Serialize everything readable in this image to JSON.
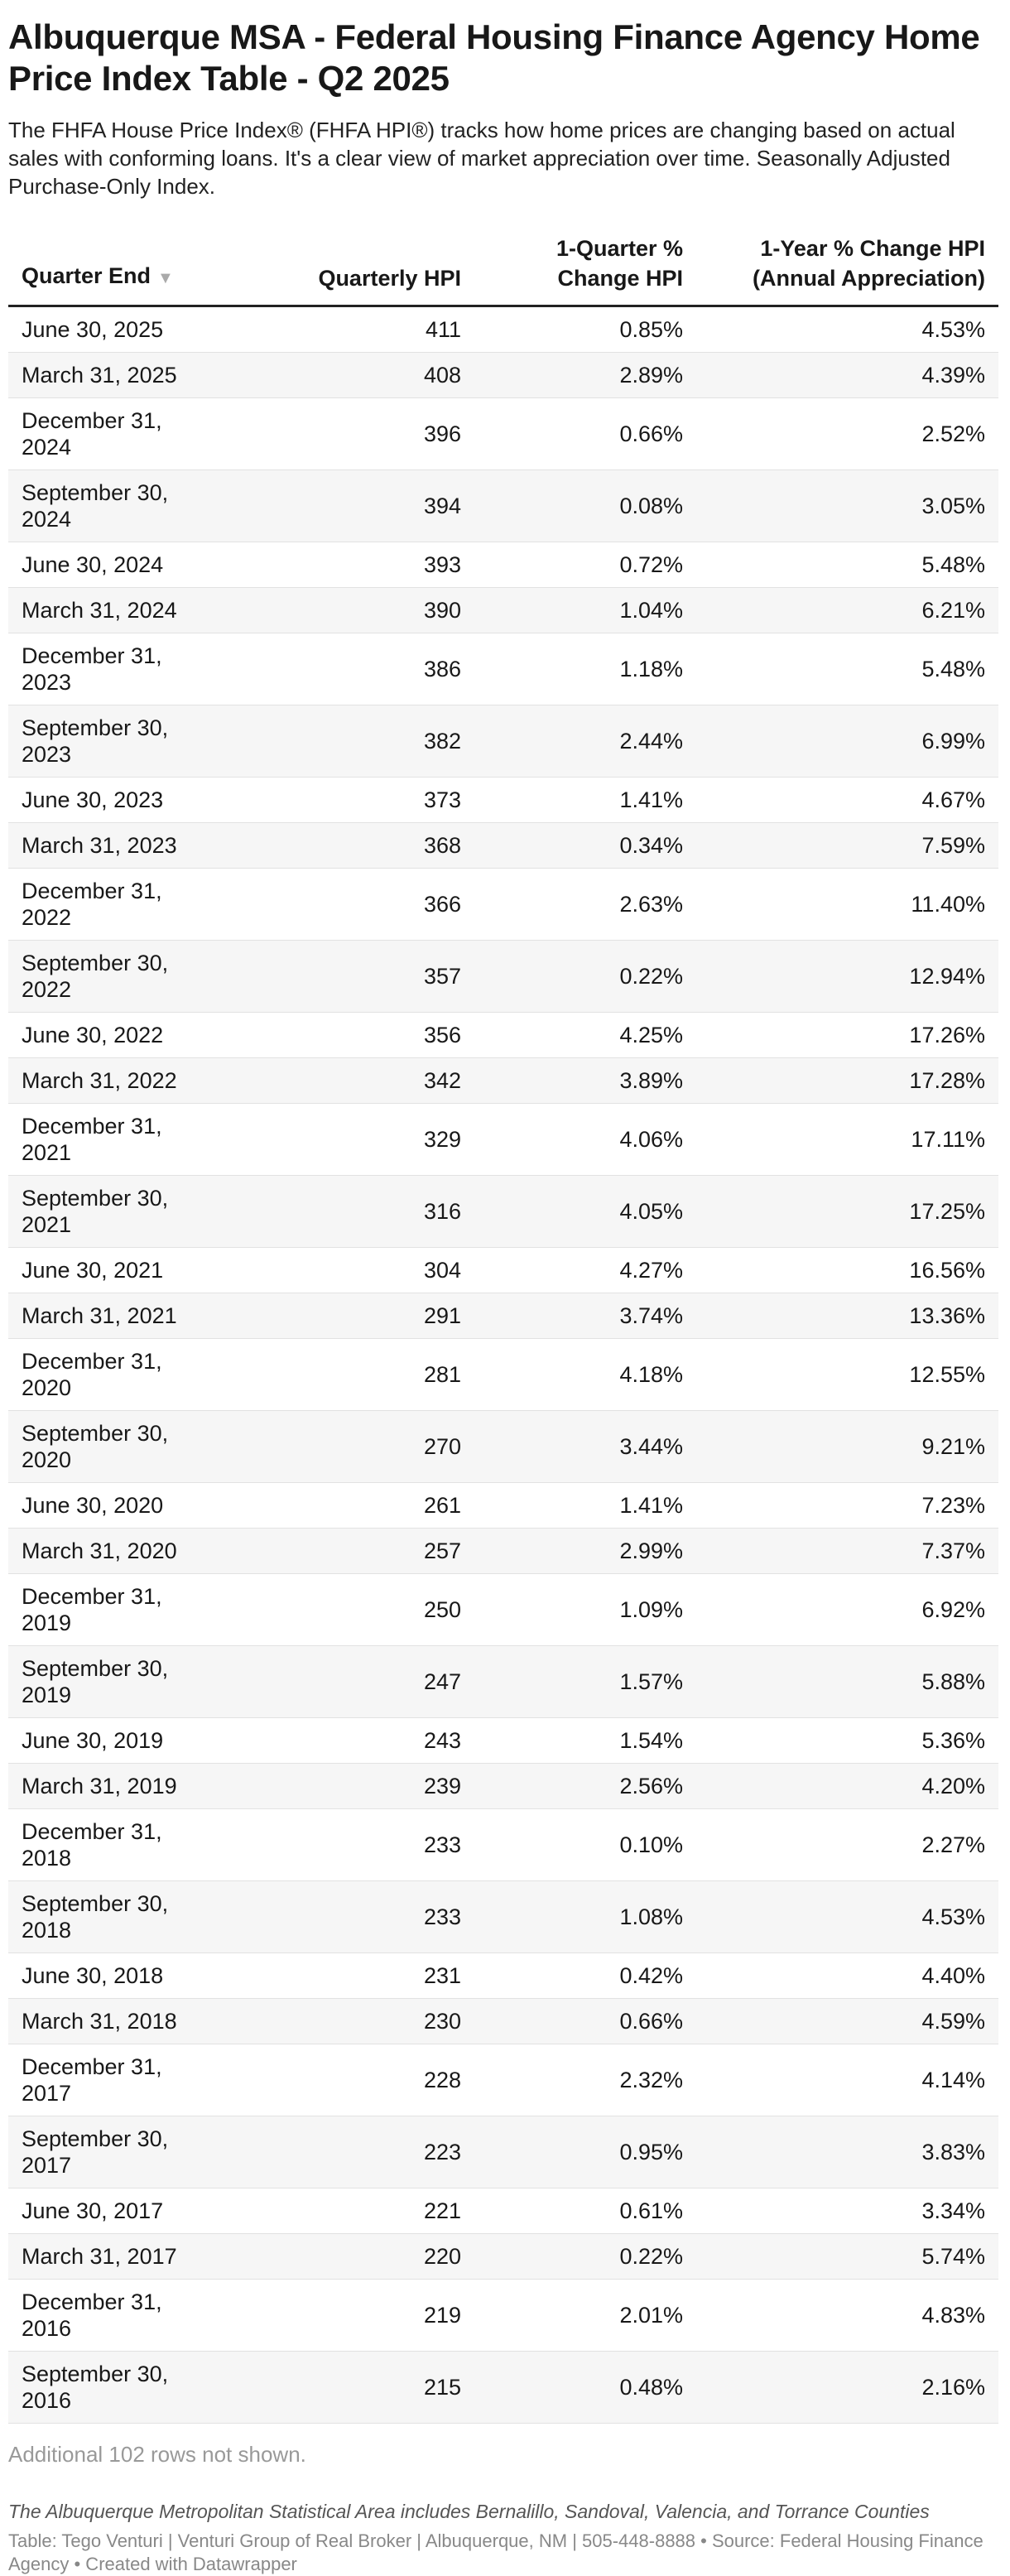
{
  "header": {
    "title": "Albuquerque MSA - Federal Housing Finance Agency Home Price Index Table - Q2 2025",
    "description": "The FHFA House Price Index® (FHFA HPI®) tracks how home prices are changing based on actual sales with conforming loans. It's a clear view of market appreciation over time. Seasonally Adjusted Purchase-Only Index."
  },
  "table": {
    "columns": [
      "Quarter End",
      "Quarterly HPI",
      "1-Quarter % Change HPI",
      "1-Year % Change HPI (Annual Appreciation)"
    ],
    "rows": [
      [
        "June 30, 2025",
        "411",
        "0.85%",
        "4.53%"
      ],
      [
        "March 31, 2025",
        "408",
        "2.89%",
        "4.39%"
      ],
      [
        "December 31, 2024",
        "396",
        "0.66%",
        "2.52%"
      ],
      [
        "September 30, 2024",
        "394",
        "0.08%",
        "3.05%"
      ],
      [
        "June 30, 2024",
        "393",
        "0.72%",
        "5.48%"
      ],
      [
        "March 31, 2024",
        "390",
        "1.04%",
        "6.21%"
      ],
      [
        "December 31, 2023",
        "386",
        "1.18%",
        "5.48%"
      ],
      [
        "September 30, 2023",
        "382",
        "2.44%",
        "6.99%"
      ],
      [
        "June 30, 2023",
        "373",
        "1.41%",
        "4.67%"
      ],
      [
        "March 31, 2023",
        "368",
        "0.34%",
        "7.59%"
      ],
      [
        "December 31, 2022",
        "366",
        "2.63%",
        "11.40%"
      ],
      [
        "September 30, 2022",
        "357",
        "0.22%",
        "12.94%"
      ],
      [
        "June 30, 2022",
        "356",
        "4.25%",
        "17.26%"
      ],
      [
        "March 31, 2022",
        "342",
        "3.89%",
        "17.28%"
      ],
      [
        "December 31, 2021",
        "329",
        "4.06%",
        "17.11%"
      ],
      [
        "September 30, 2021",
        "316",
        "4.05%",
        "17.25%"
      ],
      [
        "June 30, 2021",
        "304",
        "4.27%",
        "16.56%"
      ],
      [
        "March 31, 2021",
        "291",
        "3.74%",
        "13.36%"
      ],
      [
        "December 31, 2020",
        "281",
        "4.18%",
        "12.55%"
      ],
      [
        "September 30, 2020",
        "270",
        "3.44%",
        "9.21%"
      ],
      [
        "June 30, 2020",
        "261",
        "1.41%",
        "7.23%"
      ],
      [
        "March 31, 2020",
        "257",
        "2.99%",
        "7.37%"
      ],
      [
        "December 31, 2019",
        "250",
        "1.09%",
        "6.92%"
      ],
      [
        "September 30, 2019",
        "247",
        "1.57%",
        "5.88%"
      ],
      [
        "June 30, 2019",
        "243",
        "1.54%",
        "5.36%"
      ],
      [
        "March 31, 2019",
        "239",
        "2.56%",
        "4.20%"
      ],
      [
        "December 31, 2018",
        "233",
        "0.10%",
        "2.27%"
      ],
      [
        "September 30, 2018",
        "233",
        "1.08%",
        "4.53%"
      ],
      [
        "June 30, 2018",
        "231",
        "0.42%",
        "4.40%"
      ],
      [
        "March 31, 2018",
        "230",
        "0.66%",
        "4.59%"
      ],
      [
        "December 31, 2017",
        "228",
        "2.32%",
        "4.14%"
      ],
      [
        "September 30, 2017",
        "223",
        "0.95%",
        "3.83%"
      ],
      [
        "June 30, 2017",
        "221",
        "0.61%",
        "3.34%"
      ],
      [
        "March 31, 2017",
        "220",
        "0.22%",
        "5.74%"
      ],
      [
        "December 31, 2016",
        "219",
        "2.01%",
        "4.83%"
      ],
      [
        "September 30, 2016",
        "215",
        "0.48%",
        "2.16%"
      ]
    ],
    "more": "Additional 102 rows not shown."
  },
  "footer": {
    "note": "The Albuquerque Metropolitan Statistical Area includes Bernalillo, Sandoval, Valencia, and Torrance Counties",
    "source": "Table: Tego Venturi | Venturi Group of Real Broker | Albuquerque, NM | 505-448-8888 • Source: Federal Housing Finance Agency • Created with Datawrapper"
  }
}
